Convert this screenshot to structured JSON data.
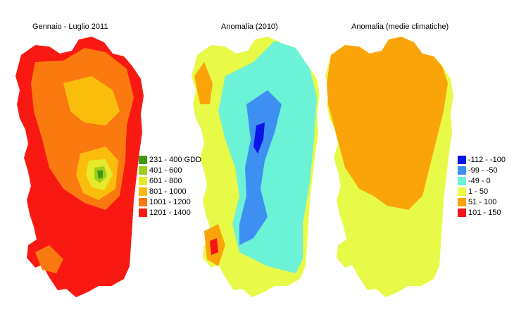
{
  "titles": {
    "map1": "Gennaio - Luglio 2011",
    "map2": "Anomalia (2010)",
    "map3": "Anomalia (medie climatiche)"
  },
  "legend_gdd": [
    {
      "label": "231 - 400 GDD",
      "color": "#3c9a14"
    },
    {
      "label": "401 - 600",
      "color": "#9fcf1c"
    },
    {
      "label": "601 - 800",
      "color": "#e6ea2c"
    },
    {
      "label": "801 - 1000",
      "color": "#fbbd0c"
    },
    {
      "label": "1001 - 1200",
      "color": "#fb7a10"
    },
    {
      "label": "1201 - 1400",
      "color": "#f81a12"
    }
  ],
  "legend_anomaly": [
    {
      "label": "-112 - -100",
      "color": "#0a14e8"
    },
    {
      "label": "-99 - -50",
      "color": "#3e8ff2"
    },
    {
      "label": "-49 - 0",
      "color": "#6cf2d6"
    },
    {
      "label": "1 - 50",
      "color": "#e8fa48"
    },
    {
      "label": "51 - 100",
      "color": "#fba40a"
    },
    {
      "label": "101 - 150",
      "color": "#f51414"
    }
  ]
}
